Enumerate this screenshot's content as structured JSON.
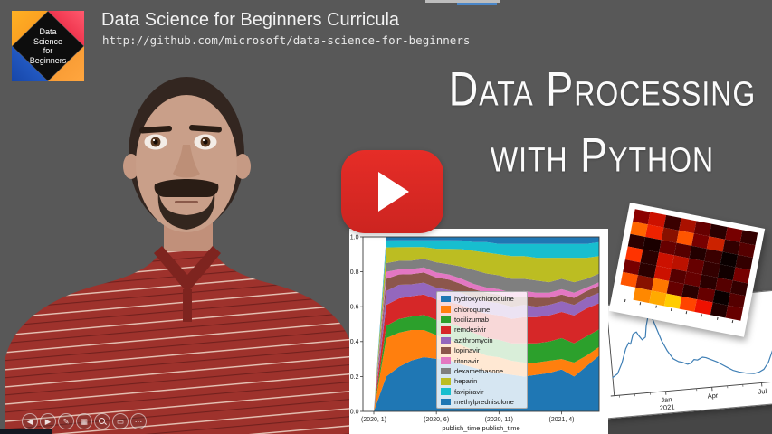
{
  "header": {
    "title": "Data Science for Beginners Curricula",
    "url": "http://github.com/microsoft/data-science-for-beginners"
  },
  "logo": {
    "lines": [
      "Data",
      "Science",
      "for",
      "Beginners"
    ]
  },
  "heading": {
    "line1": "Data Processing",
    "line2": "with Python"
  },
  "youtube": {
    "color": "#e62d27"
  },
  "toolbar": {
    "items": [
      {
        "name": "previous-slide",
        "glyph": "◀"
      },
      {
        "name": "next-slide",
        "glyph": "▶"
      },
      {
        "name": "pen",
        "glyph": "✎"
      },
      {
        "name": "all-slides",
        "glyph": "▦"
      },
      {
        "name": "zoom-slide",
        "glyph": ""
      },
      {
        "name": "captions",
        "glyph": "▭"
      },
      {
        "name": "more-options",
        "glyph": "⋯"
      }
    ]
  },
  "chart_data": [
    {
      "type": "area",
      "stacked": true,
      "normalized": true,
      "xlabel": "publish_time,publish_time",
      "ylim": [
        0,
        1
      ],
      "y_ticks": [
        "0.0",
        "0.2",
        "0.4",
        "0.6",
        "0.8",
        "1.0"
      ],
      "x_ticks": [
        {
          "pos": 0,
          "label": "(2020, 1)"
        },
        {
          "pos": 5,
          "label": "(2020, 6)"
        },
        {
          "pos": 10,
          "label": "(2020, 11)"
        },
        {
          "pos": 15,
          "label": "(2021, 4)"
        }
      ],
      "legend_position": "center",
      "series": [
        {
          "name": "hydroxychloroquine",
          "color": "#1f77b4",
          "values": [
            0,
            0.2,
            0.26,
            0.3,
            0.32,
            0.31,
            0.3,
            0.27,
            0.25,
            0.23,
            0.22,
            0.21,
            0.2,
            0.21,
            0.22,
            0.24,
            0.2,
            0.26,
            0.32
          ]
        },
        {
          "name": "chloroquine",
          "color": "#ff7f0e",
          "values": [
            0,
            0.22,
            0.2,
            0.18,
            0.16,
            0.14,
            0.12,
            0.11,
            0.1,
            0.09,
            0.09,
            0.08,
            0.08,
            0.07,
            0.07,
            0.06,
            0.08,
            0.06,
            0.05
          ]
        },
        {
          "name": "tocilizumab",
          "color": "#2ca02c",
          "values": [
            0,
            0.07,
            0.08,
            0.08,
            0.09,
            0.09,
            0.1,
            0.1,
            0.1,
            0.1,
            0.1,
            0.1,
            0.11,
            0.11,
            0.11,
            0.12,
            0.11,
            0.11,
            0.1
          ]
        },
        {
          "name": "remdesivir",
          "color": "#d62728",
          "values": [
            0,
            0.12,
            0.12,
            0.12,
            0.12,
            0.12,
            0.12,
            0.13,
            0.13,
            0.14,
            0.14,
            0.14,
            0.15,
            0.15,
            0.15,
            0.15,
            0.16,
            0.16,
            0.15
          ]
        },
        {
          "name": "azithromycin",
          "color": "#9467bd",
          "values": [
            0,
            0.08,
            0.08,
            0.07,
            0.07,
            0.07,
            0.07,
            0.07,
            0.07,
            0.07,
            0.07,
            0.07,
            0.07,
            0.06,
            0.06,
            0.06,
            0.06,
            0.06,
            0.06
          ]
        },
        {
          "name": "lopinavir",
          "color": "#8c564b",
          "values": [
            0,
            0.07,
            0.06,
            0.06,
            0.06,
            0.06,
            0.06,
            0.05,
            0.05,
            0.05,
            0.05,
            0.05,
            0.05,
            0.05,
            0.04,
            0.04,
            0.04,
            0.04,
            0.04
          ]
        },
        {
          "name": "ritonavir",
          "color": "#e377c2",
          "values": [
            0,
            0.04,
            0.03,
            0.03,
            0.03,
            0.03,
            0.03,
            0.03,
            0.03,
            0.03,
            0.03,
            0.03,
            0.03,
            0.03,
            0.03,
            0.03,
            0.03,
            0.02,
            0.02
          ]
        },
        {
          "name": "dexamethasone",
          "color": "#7f7f7f",
          "values": [
            0,
            0.05,
            0.05,
            0.05,
            0.05,
            0.06,
            0.06,
            0.07,
            0.08,
            0.08,
            0.08,
            0.08,
            0.07,
            0.07,
            0.06,
            0.06,
            0.06,
            0.05,
            0.05
          ]
        },
        {
          "name": "heparin",
          "color": "#bcbd22",
          "values": [
            0,
            0.09,
            0.08,
            0.08,
            0.07,
            0.08,
            0.09,
            0.1,
            0.11,
            0.12,
            0.12,
            0.13,
            0.13,
            0.13,
            0.14,
            0.12,
            0.14,
            0.12,
            0.1
          ]
        },
        {
          "name": "favipiravir",
          "color": "#17becf",
          "values": [
            0,
            0.04,
            0.04,
            0.04,
            0.04,
            0.05,
            0.05,
            0.05,
            0.05,
            0.06,
            0.06,
            0.07,
            0.07,
            0.08,
            0.08,
            0.08,
            0.08,
            0.08,
            0.08
          ]
        },
        {
          "name": "methylprednisolone",
          "color": "#1f77b4",
          "values": [
            0,
            0.02,
            0.02,
            0.02,
            0.02,
            0.02,
            0.02,
            0.02,
            0.03,
            0.03,
            0.04,
            0.04,
            0.04,
            0.04,
            0.04,
            0.04,
            0.04,
            0.04,
            0.03
          ]
        }
      ]
    },
    {
      "type": "heatmap",
      "colormap": "hot",
      "rows": 7,
      "cols": 8,
      "cell_colors": [
        [
          "#8b0000",
          "#cc1100",
          "#3a0000",
          "#aa1100",
          "#660000",
          "#2a0000",
          "#770000",
          "#330000"
        ],
        [
          "#ff6600",
          "#ee2200",
          "#881100",
          "#ff5500",
          "#770000",
          "#cc2200",
          "#330000",
          "#550000"
        ],
        [
          "#2a0000",
          "#1a0000",
          "#660000",
          "#550000",
          "#220000",
          "#3a0000",
          "#0a0000",
          "#330000"
        ],
        [
          "#ff3300",
          "#2a0000",
          "#cc1100",
          "#bb1100",
          "#660000",
          "#330000",
          "#110000",
          "#770000"
        ],
        [
          "#770000",
          "#2a0000",
          "#cc1100",
          "#550000",
          "#660000",
          "#2a0000",
          "#550000",
          "#330000"
        ],
        [
          "#ff5500",
          "#881100",
          "#ff7700",
          "#660000",
          "#2a0000",
          "#660000",
          "#0a0000",
          "#550000"
        ],
        [
          "#ffffff",
          "#ff8800",
          "#ffaa00",
          "#ffcc00",
          "#ff4400",
          "#ee1100",
          "#220000",
          "#660000"
        ]
      ]
    },
    {
      "type": "line",
      "color": "#3f7fb5",
      "x_ticks": [
        {
          "pos": 30,
          "label": "Jan",
          "sublabel": "2021"
        },
        {
          "pos": 57,
          "label": "Apr"
        },
        {
          "pos": 86,
          "label": "Jul"
        }
      ],
      "minor_tick_pos": [
        3,
        12,
        21,
        39,
        48,
        66,
        75,
        95
      ],
      "points": [
        [
          0,
          22
        ],
        [
          3,
          26
        ],
        [
          6,
          38
        ],
        [
          9,
          55
        ],
        [
          11,
          62
        ],
        [
          12,
          60
        ],
        [
          14,
          72
        ],
        [
          16,
          74
        ],
        [
          17,
          70
        ],
        [
          19,
          64
        ],
        [
          21,
          67
        ],
        [
          22,
          80
        ],
        [
          24,
          95
        ],
        [
          25,
          97
        ],
        [
          26,
          88
        ],
        [
          28,
          75
        ],
        [
          30,
          62
        ],
        [
          33,
          48
        ],
        [
          36,
          38
        ],
        [
          39,
          34
        ],
        [
          41,
          33
        ],
        [
          44,
          30
        ],
        [
          46,
          31
        ],
        [
          48,
          35
        ],
        [
          50,
          34
        ],
        [
          53,
          37
        ],
        [
          55,
          36
        ],
        [
          58,
          33
        ],
        [
          61,
          30
        ],
        [
          64,
          26
        ],
        [
          67,
          22
        ],
        [
          70,
          18
        ],
        [
          74,
          15
        ],
        [
          78,
          13
        ],
        [
          82,
          12
        ],
        [
          85,
          13
        ],
        [
          88,
          16
        ],
        [
          91,
          24
        ],
        [
          94,
          38
        ],
        [
          97,
          58
        ],
        [
          100,
          70
        ]
      ]
    }
  ]
}
